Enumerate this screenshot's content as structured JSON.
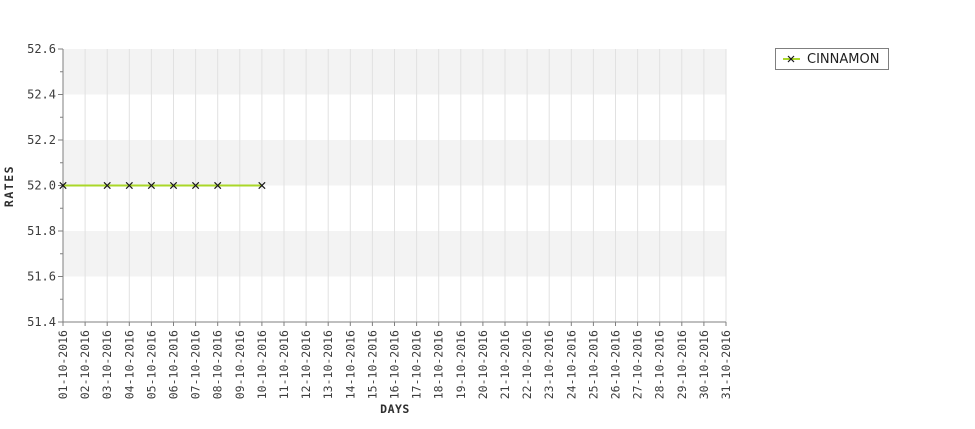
{
  "chart": {
    "legend": {
      "label": "CINNAMON"
    },
    "y_axis_title": "RATES",
    "x_axis_title": "DAYS",
    "colors": {
      "line": "#aad728",
      "marker": "#1a1a1a",
      "band": "#f3f3f3",
      "grid": "#e1e1e1",
      "axis": "#7f7f7f",
      "tick_text": "#3c3c3c",
      "title_text": "#2e2e2e",
      "legend_border": "#7f7f7f",
      "legend_text": "#1f1f1f",
      "background": "#ffffff"
    }
  },
  "chart_data": {
    "type": "line",
    "title": "",
    "xlabel": "DAYS",
    "ylabel": "RATES",
    "categories": [
      "01-10-2016",
      "02-10-2016",
      "03-10-2016",
      "04-10-2016",
      "05-10-2016",
      "06-10-2016",
      "07-10-2016",
      "08-10-2016",
      "09-10-2016",
      "10-10-2016",
      "11-10-2016",
      "12-10-2016",
      "13-10-2016",
      "14-10-2016",
      "15-10-2016",
      "16-10-2016",
      "17-10-2016",
      "18-10-2016",
      "19-10-2016",
      "20-10-2016",
      "21-10-2016",
      "22-10-2016",
      "23-10-2016",
      "24-10-2016",
      "25-10-2016",
      "26-10-2016",
      "27-10-2016",
      "28-10-2016",
      "29-10-2016",
      "30-10-2016",
      "31-10-2016"
    ],
    "series": [
      {
        "name": "CINNAMON",
        "marker": "x",
        "points": [
          {
            "x": "01-10-2016",
            "y": 52.0
          },
          {
            "x": "03-10-2016",
            "y": 52.0
          },
          {
            "x": "04-10-2016",
            "y": 52.0
          },
          {
            "x": "05-10-2016",
            "y": 52.0
          },
          {
            "x": "06-10-2016",
            "y": 52.0
          },
          {
            "x": "07-10-2016",
            "y": 52.0
          },
          {
            "x": "08-10-2016",
            "y": 52.0
          },
          {
            "x": "10-10-2016",
            "y": 52.0
          }
        ]
      }
    ],
    "ylim": [
      51.4,
      52.6
    ],
    "yticks": [
      51.4,
      51.6,
      51.8,
      52.0,
      52.2,
      52.4,
      52.6
    ],
    "ytick_labels": [
      "51.4",
      "51.6",
      "51.8",
      "52.0",
      "52.2",
      "52.4",
      "52.6"
    ],
    "y_minor_step": 0.1,
    "grid": "vertical-only",
    "plot_bands": "horizontal-alternating-gray",
    "legend_position": "top-right",
    "x_tick_label_rotation": -90
  }
}
